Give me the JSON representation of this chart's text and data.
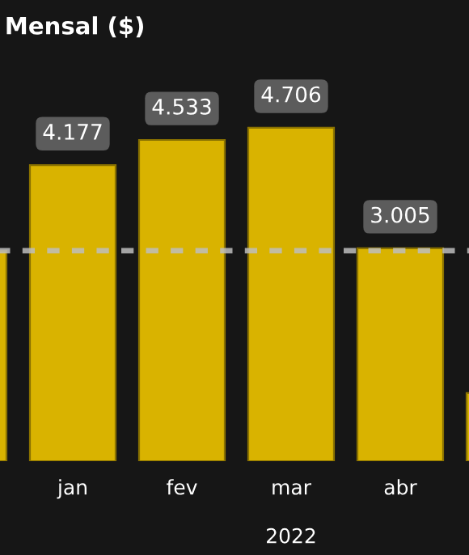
{
  "chart_data": {
    "type": "bar",
    "title": "Mensal ($)",
    "categories": [
      null,
      "jan",
      "fev",
      "mar",
      "abr",
      null
    ],
    "values": [
      2.97,
      4.177,
      4.533,
      4.706,
      3.005,
      0.96
    ],
    "value_labels": [
      null,
      "4.177",
      "4.533",
      "4.706",
      "3.005",
      null
    ],
    "color": "#d9b300",
    "ref_lines": [
      {
        "axis": "y",
        "value": 2.97,
        "color": "#bdbdbd",
        "line_style": "dashed"
      }
    ],
    "annotations": [
      "2022"
    ],
    "tick_labels": "x",
    "grid": false
  }
}
